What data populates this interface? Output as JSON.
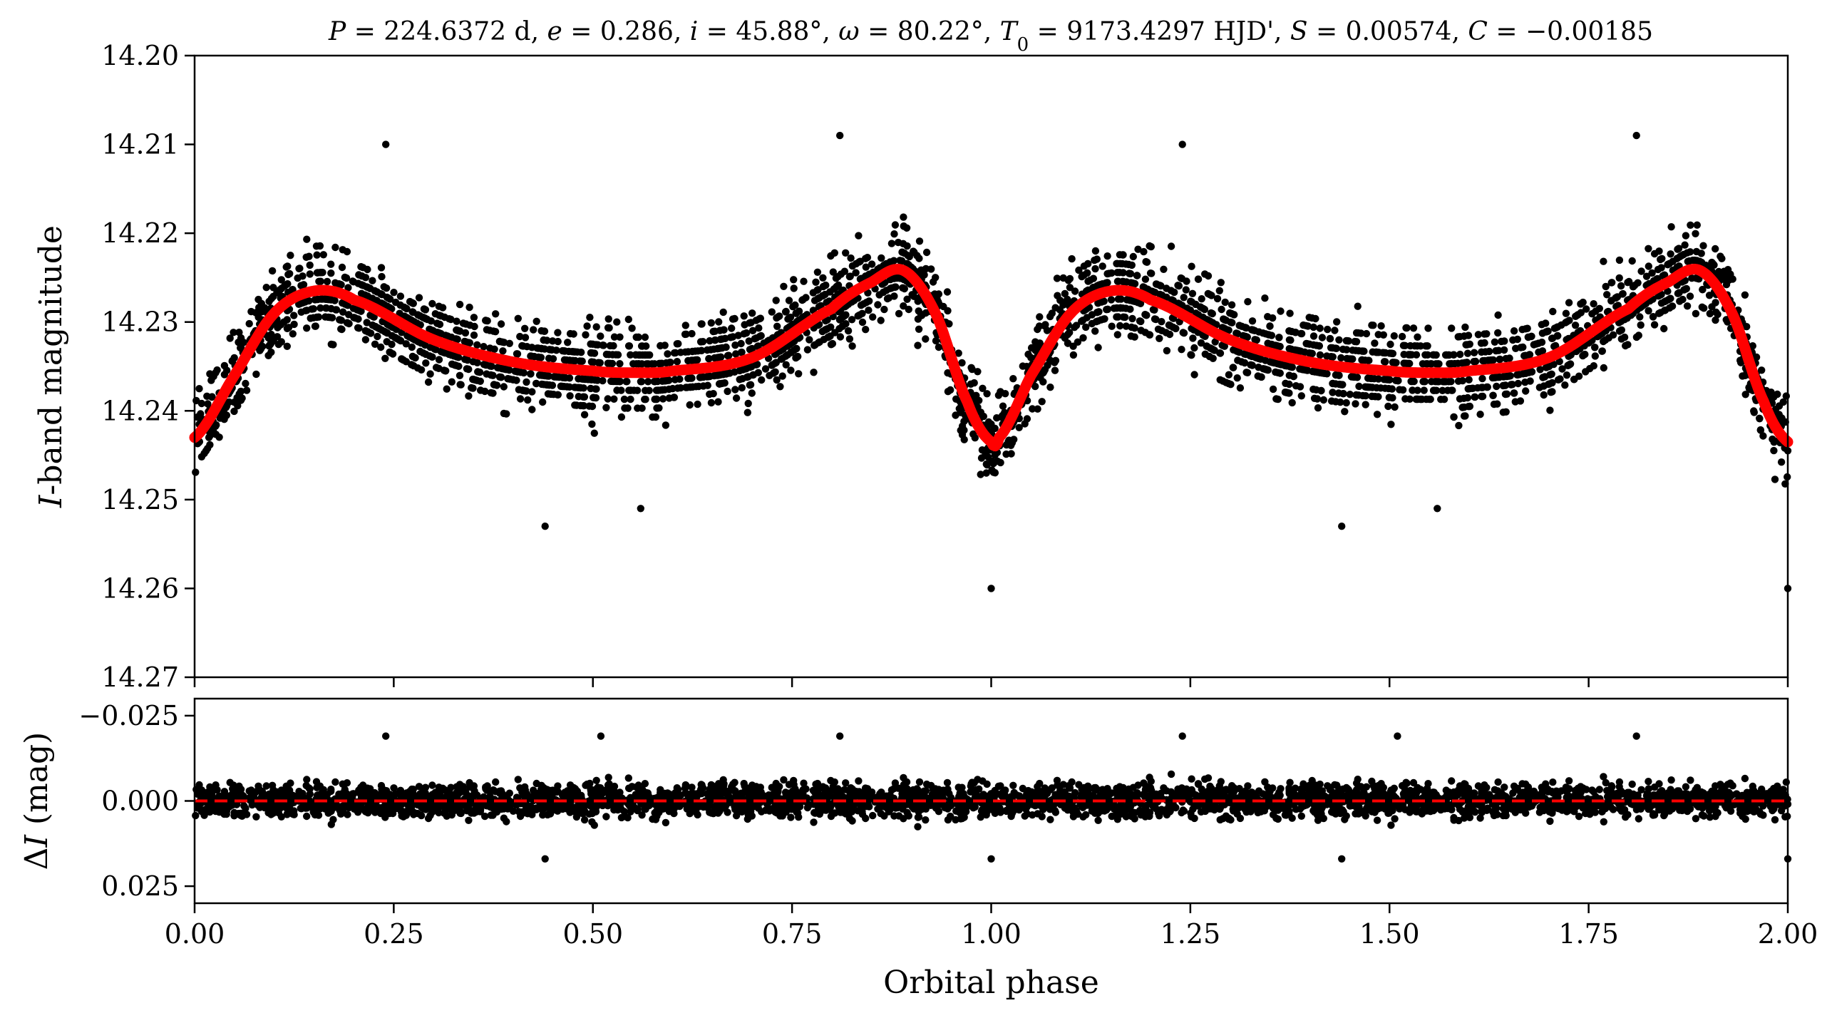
{
  "title": "P = 224.6372 d, e = 0.286, i = 45.88°, ω = 80.22°, T0 = 9173.4297 HJD', S = 0.00574, C = −0.00185",
  "title_parts": [
    {
      "t": "P",
      "style": "italic"
    },
    {
      "t": " = 224.6372 d, "
    },
    {
      "t": "e",
      "style": "italic"
    },
    {
      "t": " = 0.286, "
    },
    {
      "t": "i",
      "style": "italic"
    },
    {
      "t": " = 45.88°, "
    },
    {
      "t": "ω",
      "style": "italic"
    },
    {
      "t": " = 80.22°, "
    },
    {
      "t": "T",
      "style": "italic"
    },
    {
      "t": "0",
      "sub": true
    },
    {
      "t": " = 9173.4297 HJD', "
    },
    {
      "t": "S",
      "style": "italic"
    },
    {
      "t": " = 0.00574, "
    },
    {
      "t": "C",
      "style": "italic"
    },
    {
      "t": " = −0.00185"
    }
  ],
  "colors": {
    "points": "#000000",
    "model": "#ff0000",
    "zero_line": "#ff0000",
    "axes": "#000000"
  },
  "chart_data": [
    {
      "type": "scatter",
      "panel": "top",
      "ylabel": "I-band magnitude",
      "ylabel_parts": [
        {
          "t": "I",
          "style": "italic"
        },
        {
          "t": "-band magnitude"
        }
      ],
      "xlim": [
        0.0,
        2.0
      ],
      "ylim": [
        14.27,
        14.2
      ],
      "y_inverted": true,
      "yticks": [
        14.2,
        14.21,
        14.22,
        14.23,
        14.24,
        14.25,
        14.26,
        14.27
      ],
      "ytick_labels": [
        "14.20",
        "14.21",
        "14.22",
        "14.23",
        "14.24",
        "14.25",
        "14.26",
        "14.27"
      ],
      "grid": false,
      "series": [
        {
          "kind": "model_curve",
          "x": [
            0.0,
            0.05,
            0.1,
            0.15,
            0.2,
            0.3,
            0.4,
            0.5,
            0.55,
            0.6,
            0.7,
            0.8,
            0.85,
            0.89,
            0.93,
            0.97,
            1.0,
            1.01,
            1.05,
            1.1,
            1.15,
            1.2,
            1.3,
            1.4,
            1.5,
            1.55,
            1.6,
            1.7,
            1.8,
            1.85,
            1.89,
            1.93,
            1.97,
            2.0
          ],
          "y": [
            14.243,
            14.236,
            14.229,
            14.2265,
            14.2275,
            14.232,
            14.2345,
            14.2355,
            14.2357,
            14.2355,
            14.234,
            14.2285,
            14.2255,
            14.2242,
            14.229,
            14.239,
            14.2435,
            14.243,
            14.236,
            14.229,
            14.2265,
            14.2275,
            14.232,
            14.2345,
            14.2355,
            14.2357,
            14.2355,
            14.234,
            14.2285,
            14.2255,
            14.2242,
            14.229,
            14.239,
            14.2435
          ]
        },
        {
          "kind": "observations",
          "description_points": [
            {
              "x": 0.24,
              "y": 14.21
            },
            {
              "x": 0.81,
              "y": 14.209
            },
            {
              "x": 1.24,
              "y": 14.21
            },
            {
              "x": 1.81,
              "y": 14.209
            },
            {
              "x": 0.53,
              "y": 14.23
            },
            {
              "x": 1.0,
              "y": 14.26
            },
            {
              "x": 2.0,
              "y": 14.26
            },
            {
              "x": 0.44,
              "y": 14.253
            },
            {
              "x": 1.44,
              "y": 14.253
            },
            {
              "x": 0.56,
              "y": 14.251
            },
            {
              "x": 1.56,
              "y": 14.251
            }
          ],
          "n_points": 3600,
          "scatter_sigma": 0.0042
        }
      ]
    },
    {
      "type": "scatter",
      "panel": "bottom",
      "xlabel": "Orbital phase",
      "ylabel": "ΔI (mag)",
      "ylabel_parts": [
        {
          "t": "Δ"
        },
        {
          "t": "I",
          "style": "italic"
        },
        {
          "t": " (mag)"
        }
      ],
      "xlim": [
        0.0,
        2.0
      ],
      "ylim": [
        0.03,
        -0.03
      ],
      "y_inverted": true,
      "xticks": [
        0.0,
        0.25,
        0.5,
        0.75,
        1.0,
        1.25,
        1.5,
        1.75,
        2.0
      ],
      "xtick_labels": [
        "0.00",
        "0.25",
        "0.50",
        "0.75",
        "1.00",
        "1.25",
        "1.50",
        "1.75",
        "2.00"
      ],
      "yticks": [
        -0.025,
        0.0,
        0.025
      ],
      "ytick_labels": [
        "−0.025",
        "0.000",
        "0.025"
      ],
      "grid": false,
      "series": [
        {
          "kind": "zero_line",
          "y": 0.0,
          "style": "dashed"
        },
        {
          "kind": "residuals",
          "description_points": [
            {
              "x": 0.24,
              "y": -0.019
            },
            {
              "x": 0.51,
              "y": -0.019
            },
            {
              "x": 0.81,
              "y": -0.019
            },
            {
              "x": 1.24,
              "y": -0.019
            },
            {
              "x": 1.51,
              "y": -0.019
            },
            {
              "x": 1.81,
              "y": -0.019
            },
            {
              "x": 0.44,
              "y": 0.017
            },
            {
              "x": 1.0,
              "y": 0.017
            },
            {
              "x": 1.44,
              "y": 0.017
            },
            {
              "x": 2.0,
              "y": 0.017
            }
          ],
          "n_points": 3600,
          "scatter_sigma": 0.0042
        }
      ]
    }
  ]
}
